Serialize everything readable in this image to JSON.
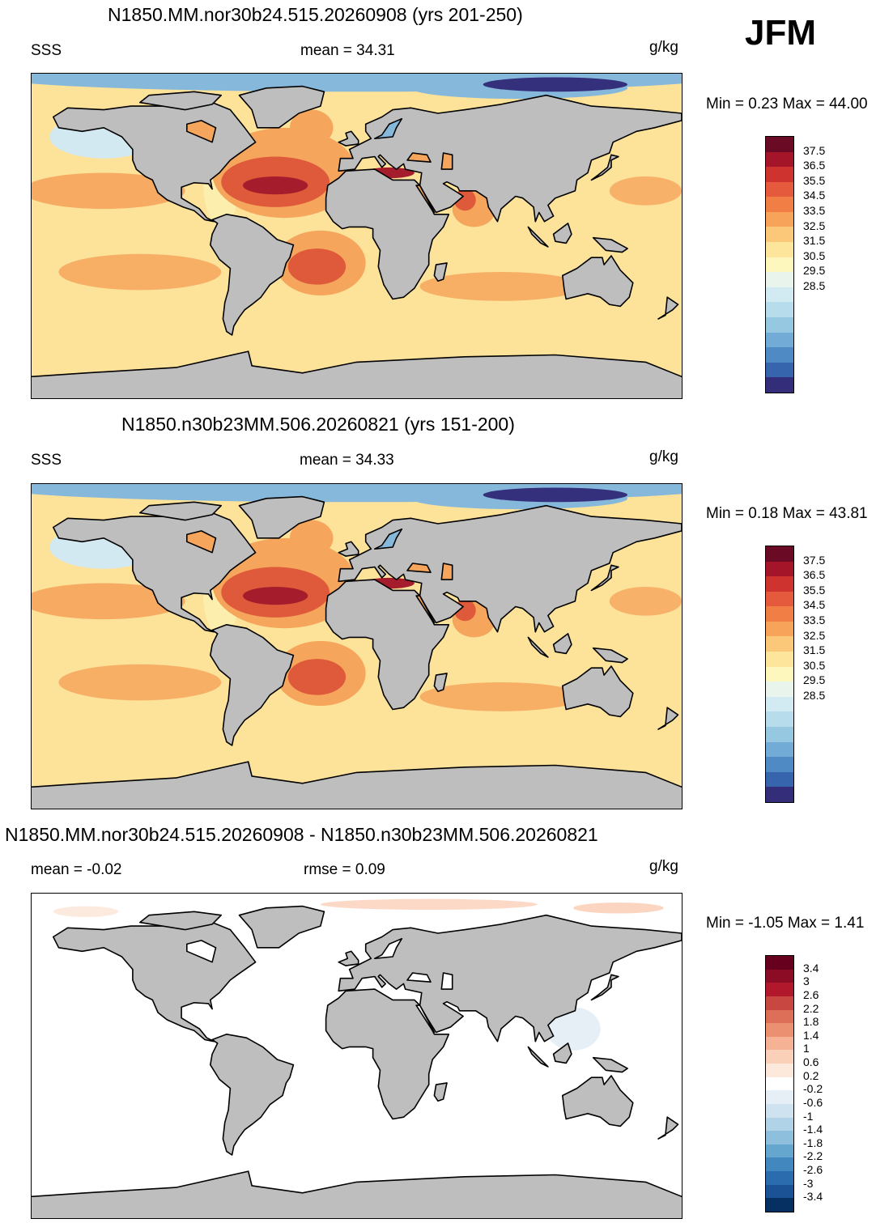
{
  "season": "JFM",
  "panels": [
    {
      "title": "N1850.MM.nor30b24.515.20260908 (yrs 201-250)",
      "left_label": "SSS",
      "center_label": "mean =  34.31",
      "units": "g/kg",
      "minmax": "Min =   0.23 Max =  44.00"
    },
    {
      "title": "N1850.n30b23MM.506.20260821 (yrs 151-200)",
      "left_label": "SSS",
      "center_label": "mean =  34.33",
      "units": "g/kg",
      "minmax": "Min =   0.18 Max =  43.81"
    },
    {
      "title": "N1850.MM.nor30b24.515.20260908 - N1850.n30b23MM.506.20260821",
      "left_label": "mean =  -0.02",
      "center_label": "rmse =    0.09",
      "units": "g/kg",
      "minmax": "Min =  -1.05 Max =   1.41"
    }
  ],
  "colorbar_abs": {
    "colors": [
      "#6b0a24",
      "#a5152a",
      "#cf3330",
      "#e55a3c",
      "#f17f45",
      "#f7a45a",
      "#fbc87a",
      "#fde59c",
      "#fdf7bd",
      "#e9f5ec",
      "#d2ebf3",
      "#b7dceb",
      "#96c8e2",
      "#72acd6",
      "#4f8ac5",
      "#3765ad",
      "#332d7a"
    ],
    "labels": [
      "37.5",
      "36.5",
      "35.5",
      "34.5",
      "33.5",
      "32.5",
      "31.5",
      "30.5",
      "29.5",
      "28.5"
    ]
  },
  "colorbar_diff": {
    "colors": [
      "#67001f",
      "#8c0c25",
      "#b2182b",
      "#c94741",
      "#dd6f58",
      "#eb9172",
      "#f5b295",
      "#fbd0b9",
      "#fde8dc",
      "#ffffff",
      "#e6eff6",
      "#cfe2ef",
      "#b1d3e7",
      "#8ebfdc",
      "#65a6cf",
      "#4288be",
      "#2a6cad",
      "#1a5295",
      "#053061"
    ],
    "labels": [
      "3.4",
      "3",
      "2.6",
      "2.2",
      "1.8",
      "1.4",
      "1",
      "0.6",
      "0.2",
      "-0.2",
      "-0.6",
      "-1",
      "-1.4",
      "-1.8",
      "-2.2",
      "-2.6",
      "-3",
      "-3.4"
    ]
  },
  "map_colors": {
    "land": "#bebebe",
    "ocean_base": "#fde29a",
    "ocean_orange": "#f6a55c",
    "ocean_red": "#de5a3a",
    "ocean_darkred": "#a51d2d",
    "ocean_fresh": "#d3e9f2",
    "ocean_blue": "#86b8dc",
    "ocean_navy": "#34307c",
    "diff_ocean": "#ffffff"
  }
}
